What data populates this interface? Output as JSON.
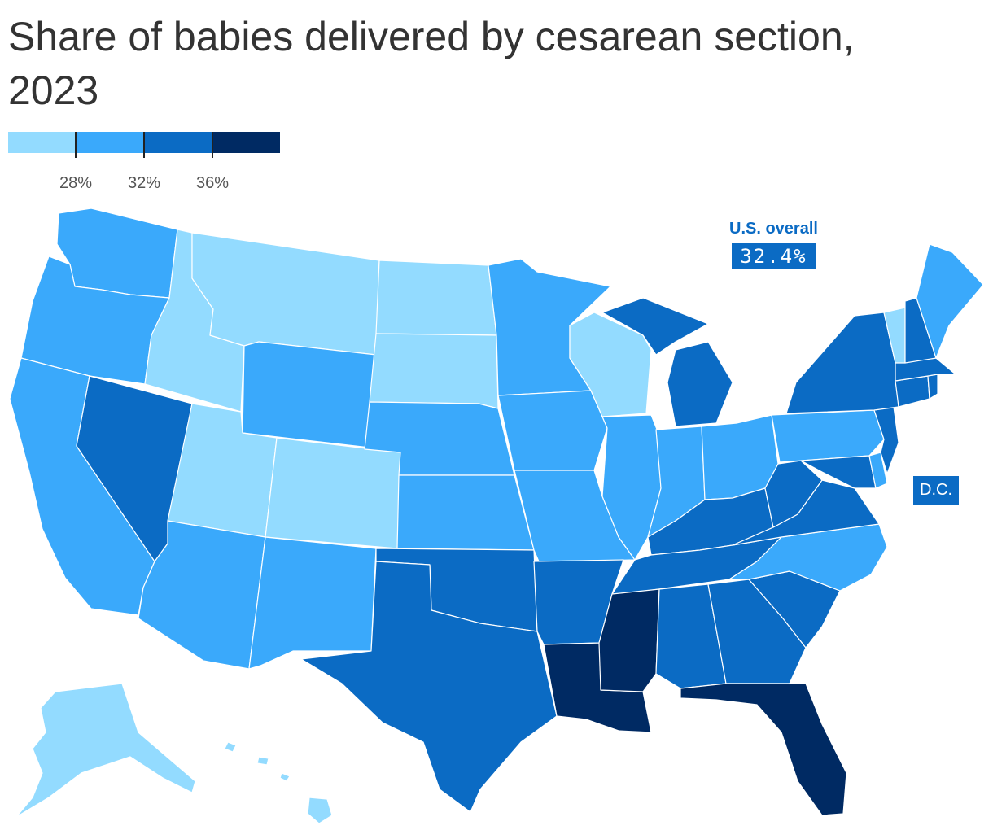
{
  "title": "Share of babies delivered by cesarean section, 2023",
  "legend": {
    "colors": [
      "#93dbff",
      "#3aa9fb",
      "#0b6bc4",
      "#002a63"
    ],
    "ticks": [
      "28%",
      "32%",
      "36%"
    ]
  },
  "overall": {
    "label": "U.S. overall",
    "value": "32.4%"
  },
  "dc_label": "D.C.",
  "bins": {
    "WA": 1,
    "OR": 1,
    "CA": 1,
    "ID": 0,
    "NV": 2,
    "MT": 0,
    "WY": 1,
    "UT": 0,
    "AZ": 1,
    "CO": 0,
    "NM": 1,
    "ND": 0,
    "SD": 0,
    "NE": 1,
    "KS": 1,
    "OK": 2,
    "TX": 2,
    "MN": 1,
    "IA": 1,
    "MO": 1,
    "AR": 2,
    "LA": 3,
    "WI": 0,
    "IL": 1,
    "MI": 2,
    "IN": 1,
    "OH": 1,
    "KY": 2,
    "TN": 2,
    "MS": 3,
    "AL": 2,
    "GA": 2,
    "FL": 3,
    "SC": 2,
    "NC": 1,
    "VA": 2,
    "WV": 2,
    "PA": 1,
    "NY": 2,
    "VT": 0,
    "NH": 2,
    "ME": 1,
    "MA": 2,
    "CT": 2,
    "RI": 2,
    "NJ": 2,
    "DE": 1,
    "MD": 2,
    "AK": 0,
    "HI": 0
  }
}
